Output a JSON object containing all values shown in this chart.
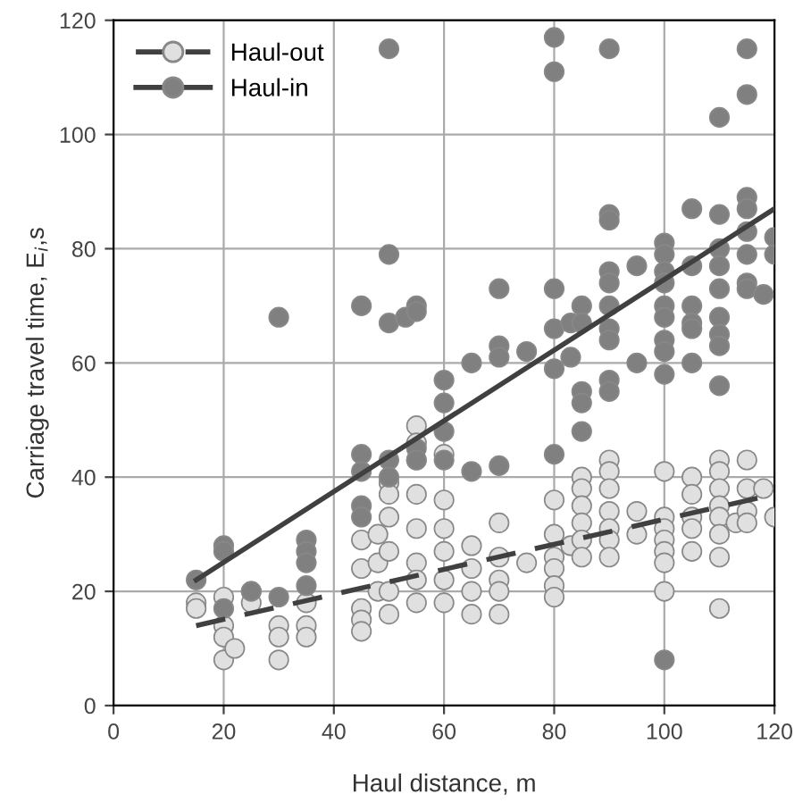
{
  "chart_data": {
    "type": "scatter",
    "xlabel": "Haul distance, m",
    "ylabel": "Carriage travel time, E$_{i}$,s",
    "xlim": [
      0,
      120
    ],
    "ylim": [
      0,
      120
    ],
    "xticks": [
      0,
      20,
      40,
      60,
      80,
      100,
      120
    ],
    "yticks": [
      0,
      20,
      40,
      60,
      80,
      100,
      120
    ],
    "grid": true,
    "legend": "top left",
    "marker": "circle",
    "series": [
      {
        "name": "Haul-out",
        "color": "#e0e0e0",
        "x": [
          15,
          15,
          20,
          20,
          20,
          20,
          22,
          25,
          25,
          30,
          30,
          30,
          35,
          35,
          35,
          45,
          45,
          45,
          45,
          45,
          48,
          48,
          48,
          50,
          50,
          50,
          50,
          50,
          50,
          55,
          55,
          55,
          55,
          55,
          55,
          55,
          55,
          60,
          60,
          60,
          60,
          60,
          60,
          65,
          65,
          65,
          65,
          70,
          70,
          70,
          70,
          70,
          75,
          80,
          80,
          80,
          80,
          80,
          80,
          83,
          85,
          85,
          85,
          85,
          85,
          85,
          90,
          90,
          90,
          90,
          90,
          90,
          90,
          95,
          95,
          100,
          100,
          100,
          100,
          100,
          100,
          100,
          105,
          105,
          105,
          105,
          105,
          110,
          110,
          110,
          110,
          110,
          110,
          110,
          110,
          113,
          115,
          115,
          115,
          115,
          118,
          120
        ],
        "values": [
          18,
          17,
          19,
          14,
          12,
          8,
          10,
          20,
          18,
          14,
          12,
          8,
          18,
          14,
          12,
          29,
          24,
          17,
          15,
          13,
          30,
          25,
          20,
          39,
          37,
          33,
          27,
          20,
          16,
          49,
          46,
          43,
          37,
          31,
          25,
          22,
          18,
          44,
          36,
          31,
          27,
          22,
          18,
          28,
          24,
          20,
          16,
          32,
          26,
          22,
          20,
          16,
          25,
          36,
          30,
          26,
          24,
          21,
          19,
          28,
          40,
          38,
          35,
          32,
          29,
          26,
          43,
          41,
          38,
          34,
          31,
          29,
          26,
          34,
          30,
          41,
          33,
          31,
          29,
          27,
          25,
          20,
          40,
          37,
          33,
          31,
          27,
          43,
          41,
          38,
          35,
          33,
          30,
          26,
          17,
          32,
          43,
          38,
          34,
          32,
          38,
          33
        ]
      },
      {
        "name": "Haul-in",
        "color": "#808080",
        "x": [
          15,
          20,
          20,
          20,
          25,
          30,
          30,
          35,
          35,
          35,
          35,
          45,
          45,
          45,
          45,
          45,
          50,
          50,
          50,
          50,
          50,
          53,
          55,
          55,
          55,
          55,
          60,
          60,
          60,
          60,
          65,
          65,
          70,
          70,
          70,
          70,
          75,
          80,
          80,
          80,
          80,
          80,
          80,
          83,
          83,
          85,
          85,
          85,
          85,
          85,
          90,
          90,
          90,
          90,
          90,
          90,
          90,
          90,
          90,
          90,
          95,
          95,
          100,
          100,
          100,
          100,
          100,
          100,
          100,
          100,
          100,
          100,
          105,
          105,
          105,
          105,
          105,
          105,
          110,
          110,
          110,
          110,
          110,
          110,
          110,
          110,
          110,
          115,
          115,
          115,
          115,
          115,
          115,
          115,
          115,
          118,
          120,
          120
        ],
        "values": [
          22,
          28,
          27,
          17,
          20,
          68,
          19,
          29,
          27,
          25,
          21,
          70,
          44,
          41,
          35,
          33,
          115,
          79,
          67,
          43,
          40,
          68,
          70,
          69,
          45,
          43,
          57,
          53,
          48,
          43,
          60,
          41,
          73,
          63,
          61,
          42,
          62,
          117,
          111,
          73,
          66,
          59,
          44,
          67,
          61,
          70,
          67,
          55,
          53,
          48,
          115,
          86,
          85,
          76,
          74,
          70,
          66,
          64,
          57,
          55,
          77,
          60,
          81,
          79,
          76,
          74,
          70,
          68,
          64,
          62,
          58,
          8,
          87,
          77,
          70,
          67,
          66,
          60,
          103,
          86,
          80,
          77,
          73,
          68,
          65,
          63,
          56,
          115,
          107,
          89,
          87,
          83,
          79,
          74,
          73,
          72,
          82,
          79
        ]
      },
      {
        "type": "line",
        "color": "#404040",
        "line_style": "dashed",
        "marker": "none",
        "x": [
          15,
          120
        ],
        "values": [
          14,
          37
        ]
      },
      {
        "type": "line",
        "color": "#404040",
        "line_style": "solid",
        "marker": "none",
        "x": [
          15,
          120
        ],
        "values": [
          22,
          87
        ]
      }
    ]
  }
}
